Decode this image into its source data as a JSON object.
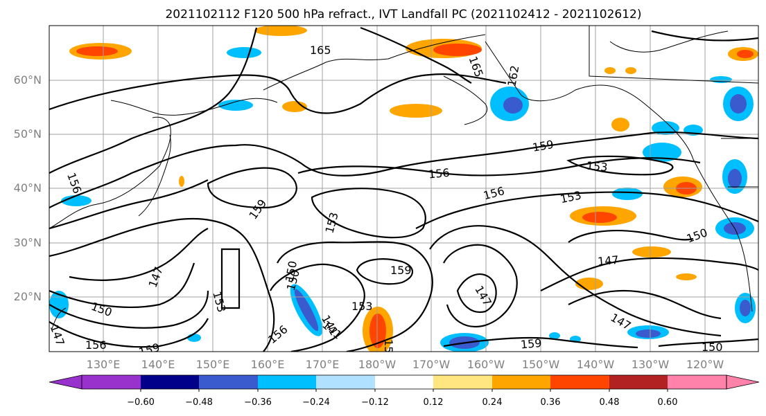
{
  "title": "2021102112 F120 500 hPa refract., IVT Landfall PC (2021102412 - 2021102612)",
  "lat_labels": [
    "60°N",
    "50°N",
    "40°N",
    "30°N",
    "20°N"
  ],
  "lon_labels": [
    "130°E",
    "140°E",
    "150°E",
    "160°E",
    "170°E",
    "180°W",
    "170°W",
    "160°W",
    "150°W",
    "140°W",
    "130°W",
    "120°W"
  ],
  "colorbar": {
    "tick_labels": [
      "−0.60",
      "−0.48",
      "−0.36",
      "−0.24",
      "−0.12",
      "0.12",
      "0.24",
      "0.36",
      "0.48",
      "0.60"
    ],
    "colors": [
      "#9932cc",
      "#00008b",
      "#3a5bcd",
      "#00bfff",
      "#b0e2ff",
      "#ffffff",
      "#ffe680",
      "#ffa500",
      "#ff4500",
      "#b22222",
      "#ff82ab"
    ]
  },
  "contour_labels": [
    "165",
    "165",
    "162",
    "159",
    "156",
    "153",
    "156",
    "153",
    "159",
    "153",
    "150",
    "147",
    "159",
    "147",
    "150",
    "153",
    "141",
    "147",
    "153",
    "156",
    "156",
    "159",
    "150",
    "147",
    "159",
    "141",
    "150",
    "150",
    "156",
    "147",
    "156"
  ]
}
